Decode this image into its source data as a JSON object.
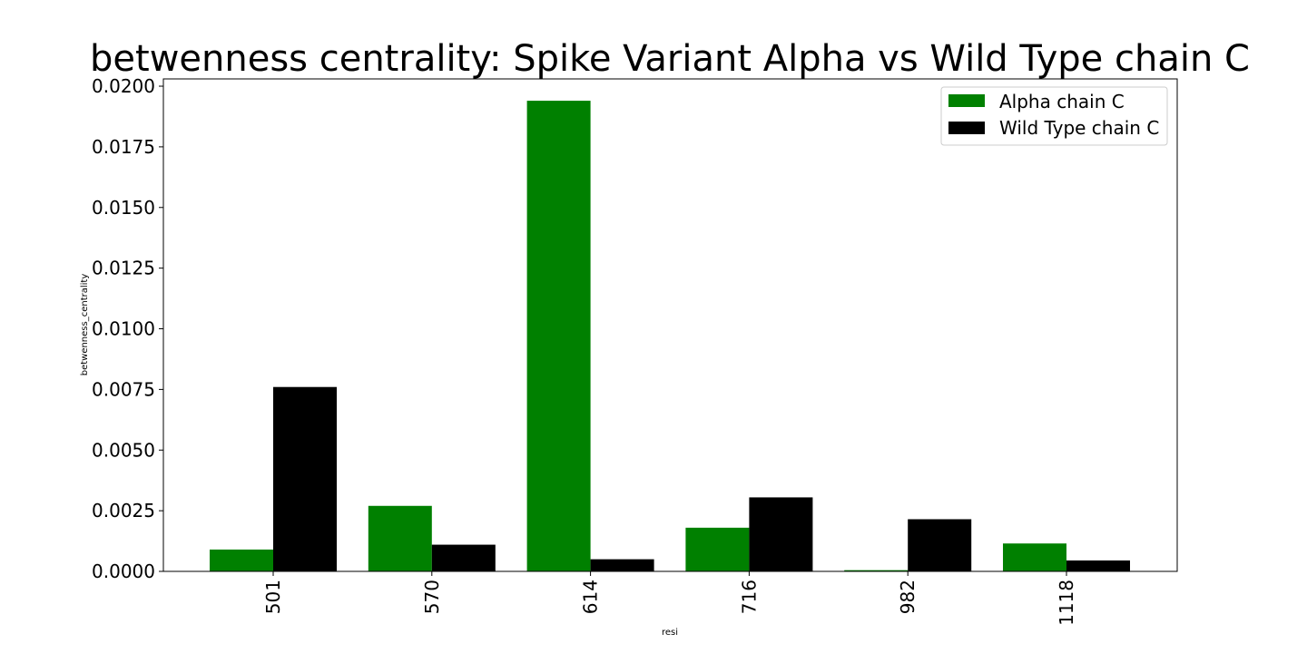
{
  "chart_data": {
    "type": "bar",
    "title": "betwenness centrality: Spike Variant Alpha vs Wild Type chain C",
    "xlabel": "resi",
    "ylabel": "betwenness_centrality",
    "categories": [
      "501",
      "570",
      "614",
      "716",
      "982",
      "1118"
    ],
    "series": [
      {
        "name": "Alpha chain C",
        "color": "#008000",
        "values": [
          0.0009,
          0.0027,
          0.0194,
          0.0018,
          5e-05,
          0.00115
        ]
      },
      {
        "name": "Wild Type chain C",
        "color": "#000000",
        "values": [
          0.0076,
          0.0011,
          0.0005,
          0.00305,
          0.00215,
          0.00045
        ]
      }
    ],
    "ylim": [
      0,
      0.0203
    ],
    "yticks": [
      "0.0000",
      "0.0025",
      "0.0050",
      "0.0075",
      "0.0100",
      "0.0125",
      "0.0150",
      "0.0175",
      "0.0200"
    ],
    "legend_position": "top-right",
    "grid": false
  }
}
